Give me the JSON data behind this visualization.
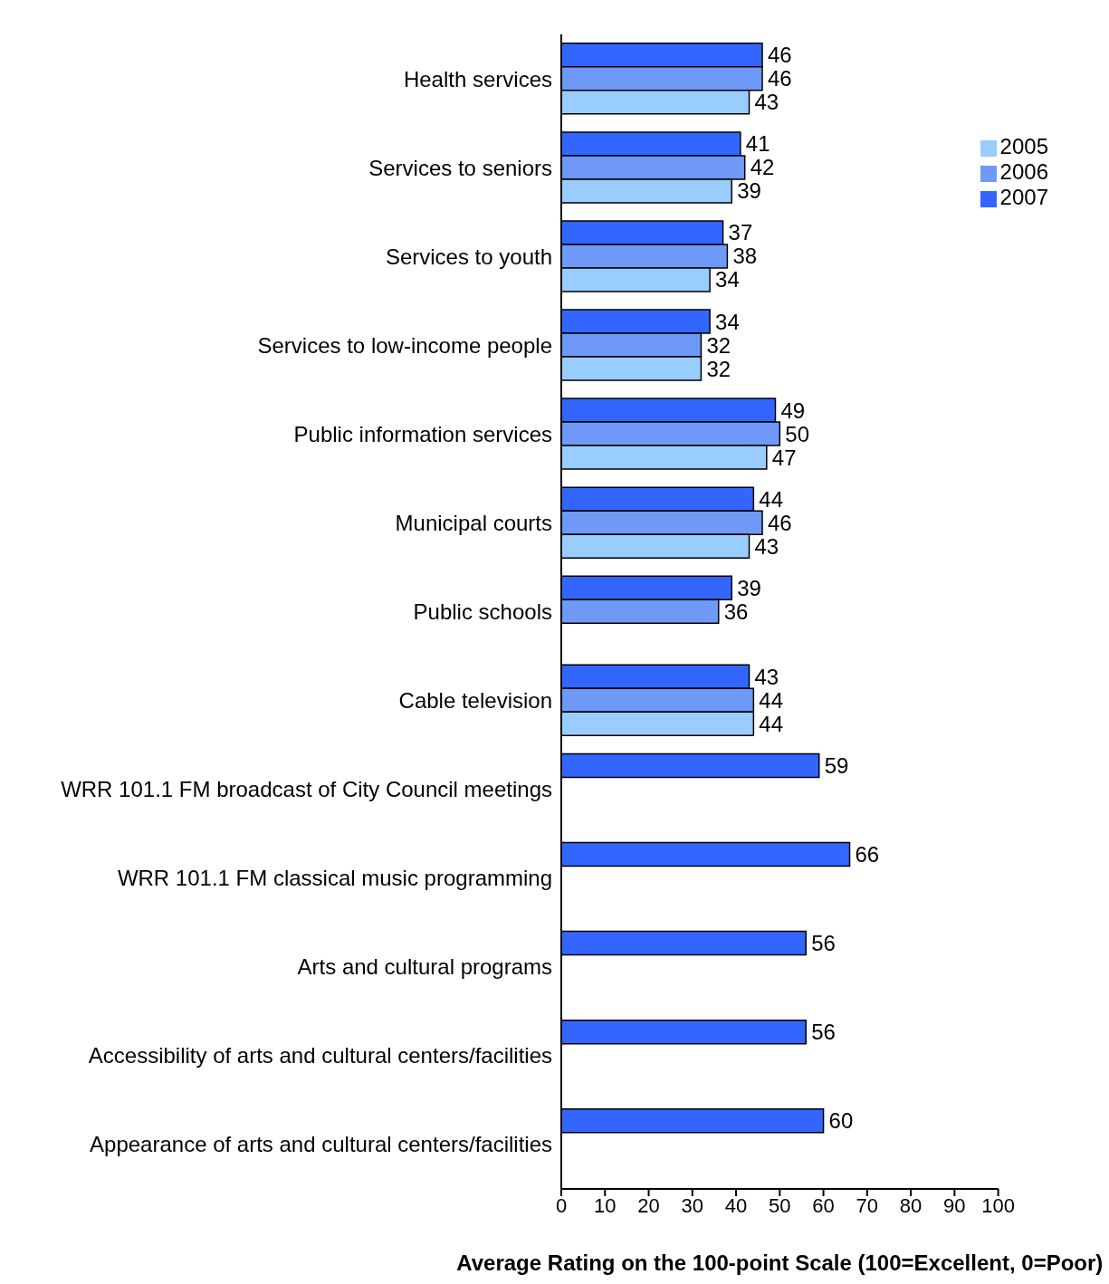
{
  "chart_data": {
    "type": "bar",
    "orientation": "horizontal",
    "xlabel": "Average Rating on the 100-point Scale (100=Excellent, 0=Poor)",
    "categories": [
      "Health services",
      "Services to seniors",
      "Services to youth",
      "Services to low-income people",
      "Public information services",
      "Municipal courts",
      "Public schools",
      "Cable television",
      "WRR 101.1 FM broadcast of City Council meetings",
      "WRR 101.1 FM classical music programming",
      "Arts and cultural programs",
      "Accessibility of arts and cultural centers/facilities",
      "Appearance of arts and cultural centers/facilities"
    ],
    "series": [
      {
        "name": "2007",
        "color": "#3366ff",
        "values": [
          46,
          41,
          37,
          34,
          49,
          44,
          39,
          43,
          59,
          66,
          56,
          56,
          60
        ]
      },
      {
        "name": "2006",
        "color": "#6f99f7",
        "values": [
          46,
          42,
          38,
          32,
          50,
          46,
          36,
          44,
          null,
          null,
          null,
          null,
          null
        ]
      },
      {
        "name": "2005",
        "color": "#99ccff",
        "values": [
          43,
          39,
          34,
          32,
          47,
          43,
          null,
          44,
          null,
          null,
          null,
          null,
          null
        ]
      }
    ],
    "xlim": [
      0,
      100
    ],
    "xticks": [
      0,
      10,
      20,
      30,
      40,
      50,
      60,
      70,
      80,
      90,
      100
    ],
    "data_labels": true,
    "grid": false,
    "legend": "top right"
  }
}
